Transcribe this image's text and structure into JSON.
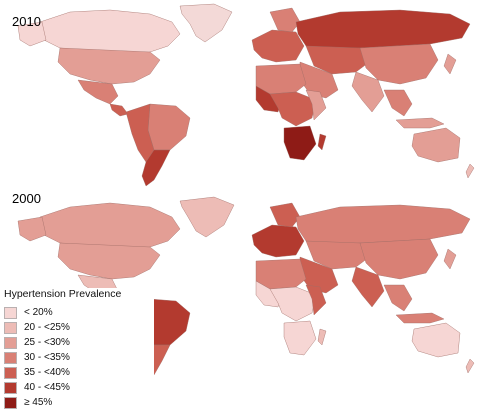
{
  "maps": [
    {
      "year_label": "2010"
    },
    {
      "year_label": "2000"
    }
  ],
  "legend": {
    "title": "Hypertension Prevalence",
    "items": [
      {
        "label": "< 20%",
        "color": "#f6d6d4"
      },
      {
        "label": "20 - <25%",
        "color": "#edbcb6"
      },
      {
        "label": "25 - <30%",
        "color": "#e39e95"
      },
      {
        "label": "30 - <35%",
        "color": "#d98075"
      },
      {
        "label": "35 - <40%",
        "color": "#cc5f52"
      },
      {
        "label": "40 - <45%",
        "color": "#b33a2f"
      },
      {
        "label": "≥ 45%",
        "color": "#8e1b16"
      }
    ]
  }
}
